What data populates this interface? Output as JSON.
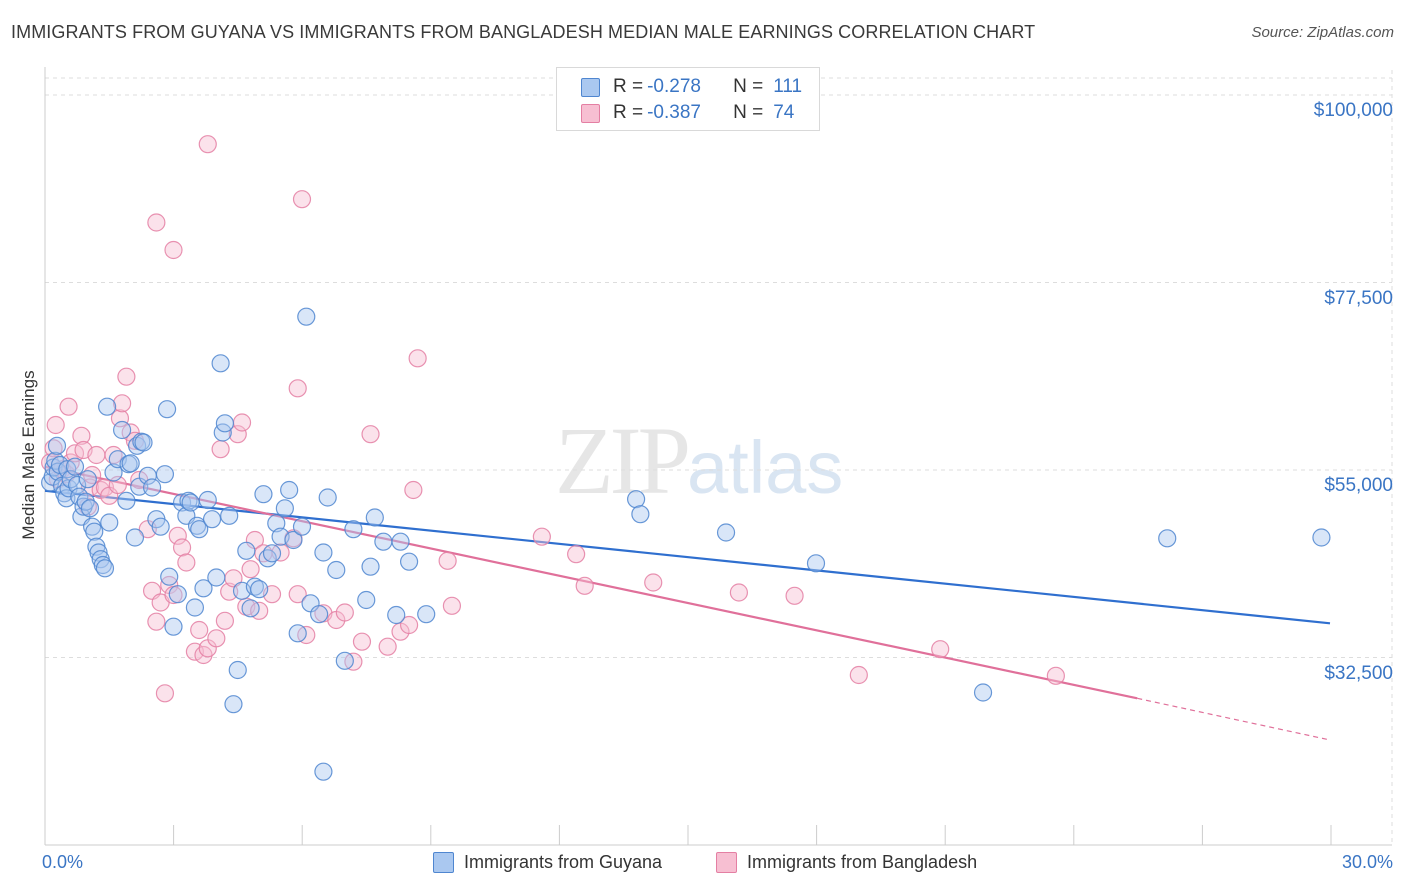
{
  "title": "IMMIGRANTS FROM GUYANA VS IMMIGRANTS FROM BANGLADESH MEDIAN MALE EARNINGS CORRELATION CHART",
  "source": "Source: ZipAtlas.com",
  "watermark": {
    "zip": "ZIP",
    "atlas": "atlas"
  },
  "colors": {
    "guyana_fill": "#aac8f0",
    "guyana_stroke": "#4f86d0",
    "guyana_line": "#2f6fcf",
    "bangladesh_fill": "#f7bfd2",
    "bangladesh_stroke": "#e47fa3",
    "bangladesh_line": "#e0709a",
    "accent_text": "#3a75c4",
    "grid": "#dddddd"
  },
  "stats": [
    {
      "r_label": "R =",
      "r_value": "-0.278",
      "n_label": "N =",
      "n_value": "111"
    },
    {
      "r_label": "R =",
      "r_value": "-0.387",
      "n_label": "N =",
      "n_value": "74"
    }
  ],
  "legend": [
    "Immigrants from Guyana",
    "Immigrants from Bangladesh"
  ],
  "chart_data": {
    "type": "scatter",
    "title": "IMMIGRANTS FROM GUYANA VS IMMIGRANTS FROM BANGLADESH MEDIAN MALE EARNINGS CORRELATION CHART",
    "xlabel": "",
    "ylabel": "Median Male Earnings",
    "x_tick_labels": [
      "0.0%",
      "30.0%"
    ],
    "y_tick_labels": [
      "$100,000",
      "$77,500",
      "$55,000",
      "$32,500"
    ],
    "y_ticks": [
      100000,
      77500,
      55000,
      32500
    ],
    "xlim": [
      0,
      30
    ],
    "ylim": [
      10000,
      103000
    ],
    "grid": true,
    "legend_position": "bottom",
    "series": [
      {
        "name": "Immigrants from Guyana",
        "r": -0.278,
        "n": 111,
        "trend": {
          "x": [
            0,
            30
          ],
          "y": [
            52500,
            36600
          ]
        },
        "points": [
          [
            0.12,
            53.5
          ],
          [
            0.18,
            54.2
          ],
          [
            0.2,
            55.3
          ],
          [
            0.24,
            56.1
          ],
          [
            0.28,
            57.9
          ],
          [
            0.3,
            54.8
          ],
          [
            0.35,
            55.6
          ],
          [
            0.4,
            53.1
          ],
          [
            0.45,
            52.2
          ],
          [
            0.5,
            51.6
          ],
          [
            0.52,
            55.1
          ],
          [
            0.55,
            52.8
          ],
          [
            0.6,
            53.9
          ],
          [
            0.7,
            55.4
          ],
          [
            0.75,
            53.2
          ],
          [
            0.8,
            51.8
          ],
          [
            0.85,
            49.4
          ],
          [
            0.9,
            50.6
          ],
          [
            0.95,
            51.2
          ],
          [
            1.0,
            53.9
          ],
          [
            1.05,
            50.4
          ],
          [
            1.1,
            48.2
          ],
          [
            1.15,
            47.6
          ],
          [
            1.2,
            45.8
          ],
          [
            1.25,
            45.1
          ],
          [
            1.3,
            44.3
          ],
          [
            1.35,
            43.6
          ],
          [
            1.4,
            43.2
          ],
          [
            1.45,
            62.6
          ],
          [
            1.5,
            48.7
          ],
          [
            1.6,
            54.7
          ],
          [
            1.7,
            56.3
          ],
          [
            1.8,
            59.8
          ],
          [
            1.9,
            51.3
          ],
          [
            1.95,
            55.7
          ],
          [
            2.0,
            55.8
          ],
          [
            2.1,
            46.9
          ],
          [
            2.15,
            57.9
          ],
          [
            2.2,
            53.0
          ],
          [
            2.25,
            58.4
          ],
          [
            2.3,
            58.3
          ],
          [
            2.4,
            54.3
          ],
          [
            2.5,
            52.9
          ],
          [
            2.6,
            49.1
          ],
          [
            2.7,
            48.2
          ],
          [
            2.8,
            54.5
          ],
          [
            2.85,
            62.3
          ],
          [
            2.9,
            42.2
          ],
          [
            3.0,
            36.2
          ],
          [
            3.1,
            40.1
          ],
          [
            3.2,
            51.1
          ],
          [
            3.3,
            49.5
          ],
          [
            3.35,
            51.3
          ],
          [
            3.4,
            51.1
          ],
          [
            3.5,
            38.5
          ],
          [
            3.55,
            48.3
          ],
          [
            3.6,
            47.9
          ],
          [
            3.7,
            40.8
          ],
          [
            3.8,
            51.4
          ],
          [
            3.9,
            49.1
          ],
          [
            4.0,
            42.1
          ],
          [
            4.1,
            67.8
          ],
          [
            4.15,
            59.5
          ],
          [
            4.2,
            60.6
          ],
          [
            4.3,
            49.5
          ],
          [
            4.4,
            26.9
          ],
          [
            4.5,
            31.0
          ],
          [
            4.6,
            40.5
          ],
          [
            4.7,
            45.3
          ],
          [
            4.8,
            38.4
          ],
          [
            4.9,
            41.0
          ],
          [
            5.0,
            40.7
          ],
          [
            5.1,
            52.1
          ],
          [
            5.2,
            44.4
          ],
          [
            5.3,
            45.0
          ],
          [
            5.4,
            48.6
          ],
          [
            5.5,
            47.0
          ],
          [
            5.6,
            50.4
          ],
          [
            5.7,
            52.6
          ],
          [
            5.8,
            46.6
          ],
          [
            5.9,
            35.4
          ],
          [
            6.0,
            48.2
          ],
          [
            6.1,
            73.4
          ],
          [
            6.2,
            39.0
          ],
          [
            6.4,
            37.7
          ],
          [
            6.5,
            45.1
          ],
          [
            6.6,
            51.7
          ],
          [
            6.8,
            43.0
          ],
          [
            7.0,
            32.1
          ],
          [
            7.2,
            47.9
          ],
          [
            7.5,
            39.4
          ],
          [
            7.6,
            43.4
          ],
          [
            7.7,
            49.3
          ],
          [
            7.9,
            46.4
          ],
          [
            8.2,
            37.6
          ],
          [
            8.3,
            46.4
          ],
          [
            8.5,
            44.0
          ],
          [
            8.9,
            37.7
          ],
          [
            6.5,
            18.8
          ],
          [
            13.8,
            51.5
          ],
          [
            13.9,
            49.7
          ],
          [
            15.9,
            47.5
          ],
          [
            18.0,
            43.8
          ],
          [
            21.9,
            28.3
          ],
          [
            26.2,
            46.8
          ],
          [
            29.8,
            46.9
          ]
        ]
      },
      {
        "name": "Immigrants from Bangladesh",
        "r": -0.387,
        "n": 74,
        "trend": {
          "x": [
            0,
            25.5
          ],
          "y": [
            55400,
            27600
          ]
        },
        "trend_dashed": {
          "x": [
            25.5,
            30
          ],
          "y": [
            27600,
            22600
          ]
        },
        "points": [
          [
            0.12,
            55.9
          ],
          [
            0.2,
            57.6
          ],
          [
            0.25,
            60.4
          ],
          [
            0.3,
            53.9
          ],
          [
            0.4,
            55.1
          ],
          [
            0.5,
            54.5
          ],
          [
            0.55,
            62.6
          ],
          [
            0.6,
            55.9
          ],
          [
            0.7,
            57.0
          ],
          [
            0.85,
            59.1
          ],
          [
            0.9,
            57.4
          ],
          [
            1.0,
            50.6
          ],
          [
            1.05,
            52.9
          ],
          [
            1.1,
            54.4
          ],
          [
            1.2,
            56.8
          ],
          [
            1.3,
            52.6
          ],
          [
            1.4,
            52.9
          ],
          [
            1.5,
            51.9
          ],
          [
            1.6,
            56.8
          ],
          [
            1.7,
            53.2
          ],
          [
            1.75,
            61.2
          ],
          [
            1.8,
            63.0
          ],
          [
            1.9,
            66.2
          ],
          [
            2.0,
            59.5
          ],
          [
            2.1,
            58.5
          ],
          [
            2.2,
            53.8
          ],
          [
            2.4,
            47.9
          ],
          [
            2.5,
            40.5
          ],
          [
            2.6,
            36.8
          ],
          [
            2.7,
            39.1
          ],
          [
            2.8,
            28.2
          ],
          [
            2.9,
            41.2
          ],
          [
            3.0,
            40.0
          ],
          [
            3.1,
            47.1
          ],
          [
            3.2,
            45.7
          ],
          [
            3.3,
            43.9
          ],
          [
            3.5,
            33.2
          ],
          [
            3.6,
            35.8
          ],
          [
            3.7,
            32.8
          ],
          [
            3.8,
            33.6
          ],
          [
            4.0,
            34.8
          ],
          [
            4.1,
            57.5
          ],
          [
            4.2,
            36.9
          ],
          [
            4.3,
            40.4
          ],
          [
            4.4,
            42.0
          ],
          [
            4.5,
            59.3
          ],
          [
            4.6,
            60.7
          ],
          [
            4.7,
            38.6
          ],
          [
            4.8,
            43.1
          ],
          [
            4.9,
            46.6
          ],
          [
            5.0,
            38.1
          ],
          [
            5.1,
            45.0
          ],
          [
            5.3,
            40.1
          ],
          [
            5.5,
            45.1
          ],
          [
            5.8,
            46.8
          ],
          [
            5.9,
            40.1
          ],
          [
            6.1,
            35.2
          ],
          [
            6.5,
            37.8
          ],
          [
            6.8,
            37.0
          ],
          [
            7.0,
            37.9
          ],
          [
            7.2,
            32.0
          ],
          [
            7.4,
            34.4
          ],
          [
            7.6,
            59.3
          ],
          [
            8.0,
            33.8
          ],
          [
            8.3,
            35.6
          ],
          [
            8.5,
            36.4
          ],
          [
            8.6,
            52.6
          ],
          [
            9.4,
            44.1
          ],
          [
            9.5,
            38.7
          ],
          [
            11.6,
            47.0
          ],
          [
            12.4,
            44.9
          ],
          [
            14.2,
            41.5
          ],
          [
            12.6,
            41.1
          ],
          [
            16.2,
            40.3
          ],
          [
            17.5,
            39.9
          ],
          [
            19.0,
            30.4
          ],
          [
            20.9,
            33.5
          ],
          [
            23.6,
            30.3
          ]
        ],
        "outliers": [
          [
            3.8,
            94.1
          ],
          [
            2.6,
            84.7
          ],
          [
            3.0,
            81.4
          ],
          [
            6.0,
            87.5
          ],
          [
            8.7,
            68.4
          ],
          [
            5.9,
            64.8
          ]
        ]
      }
    ]
  }
}
